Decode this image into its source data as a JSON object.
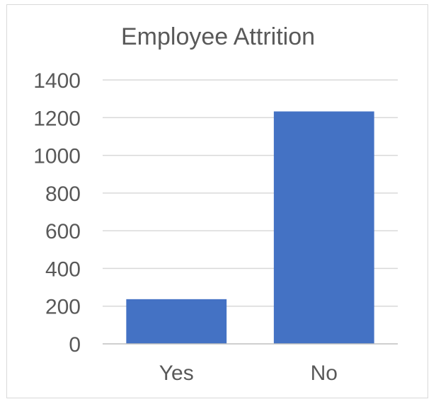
{
  "chart_data": {
    "type": "bar",
    "title": "Employee Attrition",
    "categories": [
      "Yes",
      "No"
    ],
    "values": [
      237,
      1233
    ],
    "ylim": [
      0,
      1400
    ],
    "yticks": [
      0,
      200,
      400,
      600,
      800,
      1000,
      1200,
      1400
    ],
    "xlabel": "",
    "ylabel": "",
    "grid": true,
    "legend": "none",
    "bar_color": "#4472c4"
  }
}
